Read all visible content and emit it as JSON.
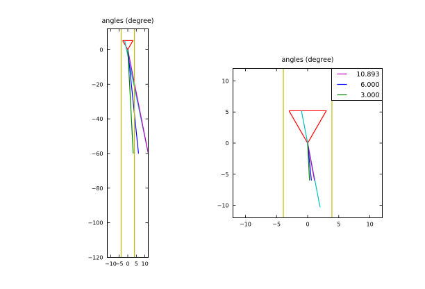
{
  "chart_data": [
    {
      "type": "line",
      "title": "angles (degree)",
      "xlim": [
        -12,
        12
      ],
      "ylim": [
        -120,
        12
      ],
      "xticks": [
        -10,
        -5,
        0,
        5,
        10
      ],
      "xtick_labels": [
        "−10",
        "−5",
        "0",
        "5",
        "10"
      ],
      "yticks": [
        0,
        -20,
        -40,
        -60,
        -80,
        -100,
        -120
      ],
      "ytick_labels": [
        "0",
        "−20",
        "−40",
        "−60",
        "−80",
        "−100",
        "−120"
      ],
      "series": [
        {
          "color": "#ff0000",
          "x": [
            -3,
            3,
            0,
            -3
          ],
          "y": [
            5.2,
            5.2,
            0,
            5.2
          ]
        },
        {
          "color": "#00bfbf",
          "x": [
            -1.8,
            12
          ],
          "y": [
            5.2,
            -60
          ]
        },
        {
          "color": "#bf00bf",
          "x": [
            0,
            12
          ],
          "y": [
            0,
            -60
          ]
        },
        {
          "color": "#0000ff",
          "x": [
            0,
            6.3
          ],
          "y": [
            0,
            -60
          ]
        },
        {
          "color": "#008000",
          "x": [
            0,
            3.2
          ],
          "y": [
            0,
            -60
          ]
        },
        {
          "color": "#bfbf00",
          "x": [
            -3.9,
            -3.9
          ],
          "y": [
            12,
            -120
          ]
        },
        {
          "color": "#bfbf00",
          "x": [
            3.9,
            3.9
          ],
          "y": [
            12,
            -120
          ]
        }
      ]
    },
    {
      "type": "line",
      "title": "angles (degree)",
      "xlim": [
        -12,
        12
      ],
      "ylim": [
        -12,
        12
      ],
      "xticks": [
        -10,
        -5,
        0,
        5,
        10
      ],
      "xtick_labels": [
        "−10",
        "−5",
        "0",
        "5",
        "10"
      ],
      "yticks": [
        10,
        5,
        0,
        -5,
        -10
      ],
      "ytick_labels": [
        "10",
        "5",
        "0",
        "−5",
        "−10"
      ],
      "legend": {
        "position": "top-right",
        "entries": [
          {
            "label": "10.893",
            "color": "#bf00bf"
          },
          {
            "label": "6.000",
            "color": "#0000ff"
          },
          {
            "label": "3.000",
            "color": "#008000"
          }
        ]
      },
      "series": [
        {
          "color": "#bfbf00",
          "x": [
            -3.9,
            -3.9
          ],
          "y": [
            12,
            -12
          ]
        },
        {
          "color": "#bfbf00",
          "x": [
            3.9,
            3.9
          ],
          "y": [
            12,
            -12
          ]
        },
        {
          "color": "#ff0000",
          "x": [
            -3,
            3,
            0,
            -3
          ],
          "y": [
            5.2,
            5.2,
            0,
            5.2
          ]
        },
        {
          "color": "#00bfbf",
          "x": [
            -1.0,
            2.0
          ],
          "y": [
            5.2,
            -10.3
          ]
        },
        {
          "color": "#bf00bf",
          "x": [
            0,
            1.1
          ],
          "y": [
            0,
            -6
          ]
        },
        {
          "color": "#0000ff",
          "x": [
            0,
            0.6
          ],
          "y": [
            0,
            -6
          ]
        },
        {
          "color": "#008000",
          "x": [
            0,
            0.3
          ],
          "y": [
            0,
            -6
          ]
        }
      ]
    }
  ]
}
